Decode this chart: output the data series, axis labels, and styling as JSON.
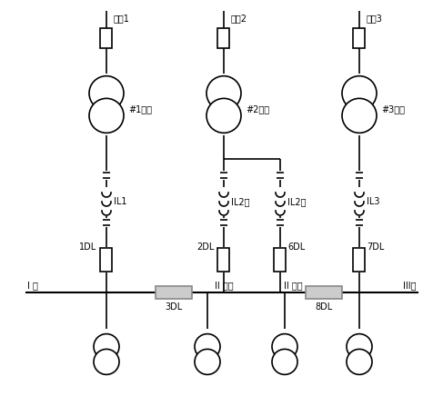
{
  "bg_color": "#ffffff",
  "line_color": "#000000",
  "gray_color": "#888888",
  "figsize": [
    4.77,
    4.36
  ],
  "dpi": 100,
  "c1": 0.175,
  "c2a": 0.445,
  "c2b": 0.595,
  "c3": 0.82,
  "labels": {
    "jinxian1": "进线1",
    "jinxian2": "进线2",
    "jinxian3": "进线3",
    "trans1": "#1主变",
    "trans2": "#2主变",
    "trans3": "#3主变",
    "il1": "IL1",
    "il2jia": "IL2甲",
    "il2yi": "IL2乙",
    "il3": "IL3",
    "dl1": "1DL",
    "dl2": "2DL",
    "dl6": "6DL",
    "dl7": "7DL",
    "dl3": "3DL",
    "dl8": "8DL",
    "bus1": "I 母",
    "bus2jia": "II 母甲",
    "bus2yi": "II 母乙",
    "bus3": "III母"
  }
}
